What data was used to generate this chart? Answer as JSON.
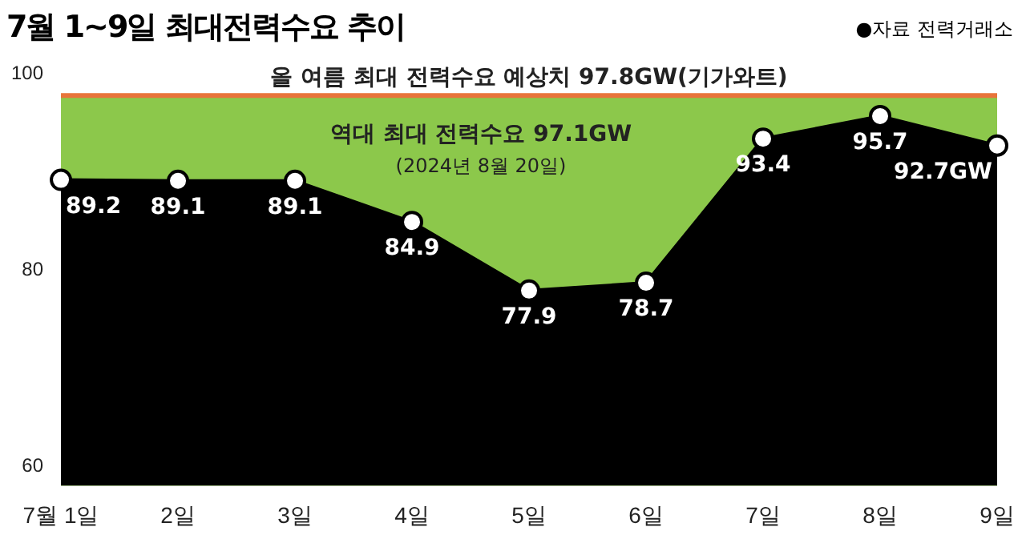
{
  "chart_data": {
    "type": "area",
    "title": "7월 1~9일 최대전력수요 추이",
    "annotations": [
      "●자료 전력거래소",
      "역대 최대 전력수요 97.1GW",
      "(2024년 8월 20일)"
    ],
    "categories": [
      "7월 1일",
      "2일",
      "3일",
      "4일",
      "5일",
      "6일",
      "7일",
      "8일",
      "9일"
    ],
    "series": [
      {
        "color": "#000000",
        "values": [
          89.2,
          89.1,
          89.1,
          84.9,
          77.9,
          78.7,
          93.4,
          95.7,
          92.7
        ],
        "value_labels": [
          "89.2",
          "89.1",
          "89.1",
          "84.9",
          "77.9",
          "78.7",
          "93.4",
          "95.7",
          "92.7GW"
        ]
      }
    ],
    "ylim": [
      58,
      100
    ],
    "yticks": [
      60,
      80,
      100
    ],
    "grid": false,
    "legend": false,
    "marker": "circle",
    "ref_lines": [
      {
        "axis": "y",
        "value": 97.8,
        "label": "올 여름 최대 전력수요 예상치 97.8GW(기가와트)",
        "color": "#e8743b"
      }
    ],
    "bands": [
      {
        "axis": "y",
        "from": 58,
        "to": 97.8,
        "color": "#8cc84b"
      }
    ]
  }
}
